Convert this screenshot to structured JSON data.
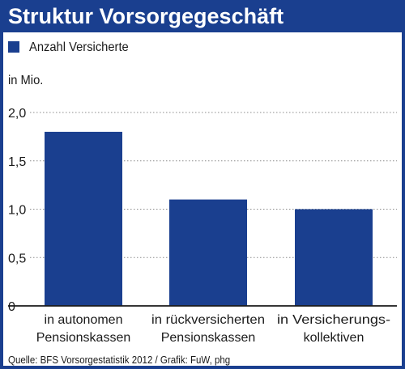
{
  "colors": {
    "frame": "#1a3f8f",
    "bar": "#1a3f8f",
    "axis": "#1a1a1a",
    "grid": "#8c8c8c",
    "title_text": "#ffffff"
  },
  "chart_data": {
    "type": "bar",
    "title": "Struktur Vorsorgegeschäft",
    "unit_label": "in Mio.",
    "legend": [
      "Anzahl Versicherte"
    ],
    "legend_position": "top-left",
    "categories": [
      [
        "in autonomen",
        "Pensionskassen"
      ],
      [
        "in rückversicherten",
        "Pensionskassen"
      ],
      [
        "in Versicherungs-",
        "kollektiven"
      ]
    ],
    "series": [
      {
        "name": "Anzahl Versicherte",
        "values": [
          1.8,
          1.1,
          1.0
        ]
      }
    ],
    "ylim": [
      0,
      2.0
    ],
    "yticks": [
      0,
      0.5,
      1.0,
      1.5,
      2.0
    ],
    "ytick_labels": [
      "0",
      "0,5",
      "1,0",
      "1,5",
      "2,0"
    ],
    "grid": true,
    "source": "Quelle: BFS Vorsorgestatistik 2012 / Grafik: FuW, phg"
  }
}
